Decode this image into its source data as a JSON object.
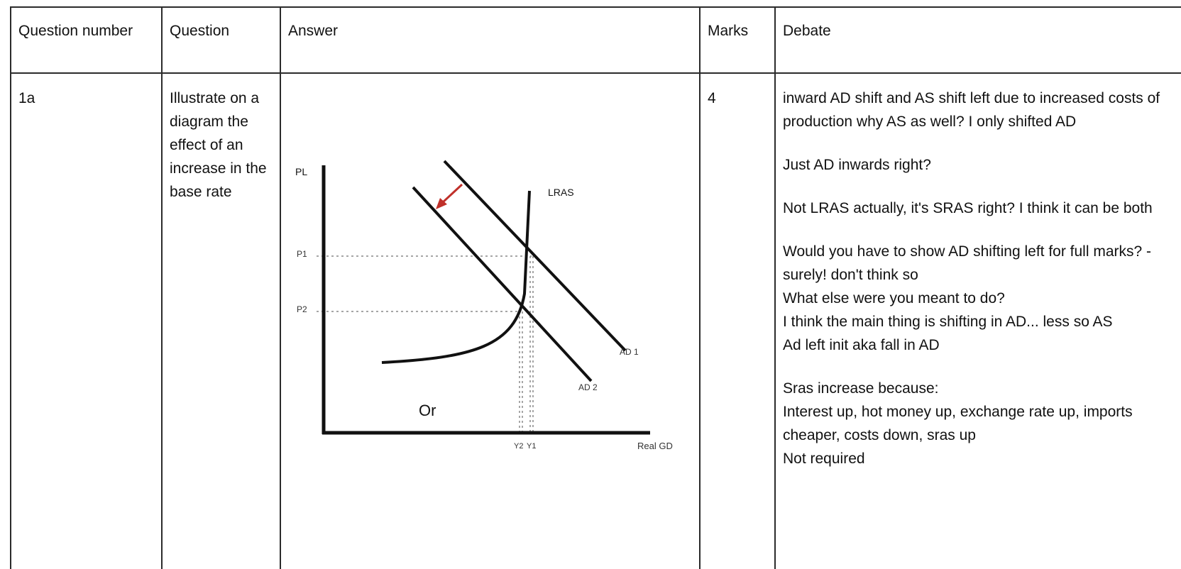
{
  "table": {
    "headers": {
      "question_number": "Question number",
      "question": "Question",
      "answer": "Answer",
      "marks": "Marks",
      "debate": "Debate"
    },
    "rows": [
      {
        "question_number": "1a",
        "question": "Illustrate on a diagram the effect of an increase in the base rate",
        "marks": "4",
        "answer": {
          "diagram_labels": {
            "y_axis": "PL",
            "x_axis": "Real GD",
            "lras": "LRAS",
            "p1": "P1",
            "p2": "P2",
            "y1": "Y1",
            "y2": "Y2",
            "ad1": "AD 1",
            "ad2": "AD 2"
          },
          "or_label": "Or",
          "colors": {
            "lines": "#111111",
            "guides": "#888888",
            "shift_arrow": "#c0302a"
          }
        },
        "debate": {
          "p1": "inward AD shift and AS shift left due to increased costs of production why AS as well? I only shifted AD",
          "p2": "Just AD inwards right?",
          "p3": "Not LRAS actually, it's SRAS right? I think it can be both",
          "p4": [
            "Would you have to show AD shifting left for full marks? -surely! don't think so",
            "What else were you meant to do?",
            "I think the main thing is shifting in AD... less so AS",
            "Ad left init aka fall in AD"
          ],
          "p5": [
            "Sras increase because:",
            "Interest up, hot money up, exchange rate up, imports cheaper, costs down, sras up",
            "Not required"
          ]
        }
      }
    ]
  }
}
